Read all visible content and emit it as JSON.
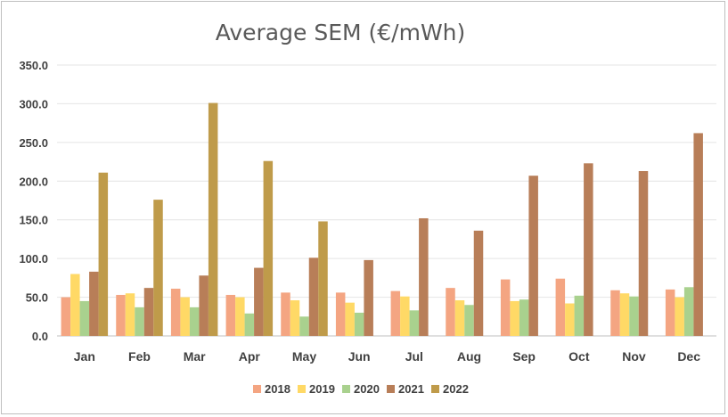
{
  "chart_data": {
    "type": "bar",
    "title": "Average SEM (€/mWh)",
    "xlabel": "",
    "ylabel": "",
    "ylim": [
      0,
      350
    ],
    "yticks": [
      "0.0",
      "50.0",
      "100.0",
      "150.0",
      "200.0",
      "250.0",
      "300.0",
      "350.0"
    ],
    "grid": true,
    "legend_position": "bottom",
    "categories": [
      "Jan",
      "Feb",
      "Mar",
      "Apr",
      "May",
      "Jun",
      "Jul",
      "Aug",
      "Sep",
      "Oct",
      "Nov",
      "Dec"
    ],
    "series": [
      {
        "name": "2018",
        "color": "#f4a582",
        "values": [
          50,
          53,
          61,
          53,
          56,
          56,
          58,
          62,
          73,
          74,
          59,
          60
        ]
      },
      {
        "name": "2019",
        "color": "#ffd966",
        "values": [
          80,
          55,
          50,
          50,
          46,
          43,
          51,
          46,
          45,
          42,
          55,
          50
        ]
      },
      {
        "name": "2020",
        "color": "#a9d18e",
        "values": [
          45,
          37,
          37,
          29,
          25,
          30,
          33,
          40,
          47,
          52,
          51,
          63
        ]
      },
      {
        "name": "2021",
        "color": "#b87e58",
        "values": [
          83,
          62,
          78,
          88,
          101,
          98,
          152,
          136,
          207,
          223,
          213,
          262
        ]
      },
      {
        "name": "2022",
        "color": "#bf9b4a",
        "values": [
          211,
          176,
          301,
          226,
          148,
          null,
          null,
          null,
          null,
          null,
          null,
          null
        ]
      }
    ]
  }
}
